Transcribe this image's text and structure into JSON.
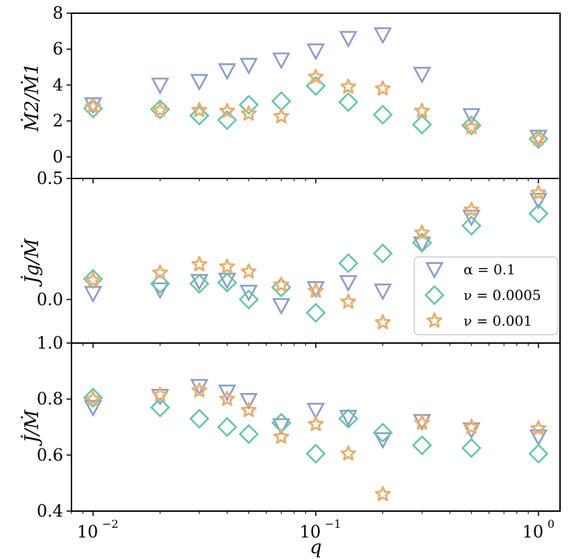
{
  "colors": {
    "alpha": "#8c9cc8",
    "nu_low": "#66c5a6",
    "nu_high": "#e6b072"
  },
  "chart_data": [
    {
      "type": "scatter",
      "panel": "top",
      "ylabel": "Ṁ2/Ṁ1",
      "xscale": "log",
      "xlim": [
        0.008,
        1.25
      ],
      "ylim": [
        -1.2,
        8
      ],
      "yticks": [
        "0",
        "2",
        "4",
        "6",
        "8"
      ],
      "ytick_values": [
        0,
        2,
        4,
        6,
        8
      ],
      "series": [
        {
          "name": "α = 0.1",
          "marker": "triangle-down",
          "color_key": "alpha",
          "x": [
            0.01,
            0.02,
            0.03,
            0.04,
            0.05,
            0.07,
            0.1,
            0.14,
            0.2,
            0.3,
            0.5,
            1.0
          ],
          "y": [
            2.9,
            4.0,
            4.2,
            4.8,
            5.1,
            5.4,
            5.9,
            6.6,
            6.8,
            4.6,
            2.3,
            1.1
          ]
        },
        {
          "name": "ν = 0.0005",
          "marker": "diamond",
          "color_key": "nu_low",
          "x": [
            0.01,
            0.02,
            0.03,
            0.04,
            0.05,
            0.07,
            0.1,
            0.14,
            0.2,
            0.3,
            0.5,
            1.0
          ],
          "y": [
            2.7,
            2.65,
            2.3,
            2.05,
            2.9,
            3.1,
            3.95,
            3.05,
            2.35,
            1.8,
            1.75,
            1.0
          ]
        },
        {
          "name": "ν = 0.001",
          "marker": "star",
          "color_key": "nu_high",
          "x": [
            0.01,
            0.02,
            0.03,
            0.04,
            0.05,
            0.07,
            0.1,
            0.14,
            0.2,
            0.3,
            0.5,
            1.0
          ],
          "y": [
            2.8,
            2.6,
            2.6,
            2.55,
            2.4,
            2.25,
            4.45,
            3.9,
            3.8,
            2.55,
            1.65,
            1.0
          ]
        }
      ]
    },
    {
      "type": "scatter",
      "panel": "middle",
      "ylabel": "J̇g/Ṁ",
      "xscale": "log",
      "xlim": [
        0.008,
        1.25
      ],
      "ylim": [
        -0.18,
        0.5
      ],
      "yticks": [
        "0.0",
        "0.5"
      ],
      "ytick_values": [
        0.0,
        0.5
      ],
      "series": [
        {
          "name": "α = 0.1",
          "marker": "triangle-down",
          "color_key": "alpha",
          "x": [
            0.01,
            0.02,
            0.03,
            0.04,
            0.05,
            0.07,
            0.1,
            0.14,
            0.2,
            0.3,
            0.5,
            1.0
          ],
          "y": [
            0.025,
            0.04,
            0.075,
            0.08,
            0.03,
            -0.025,
            0.045,
            0.07,
            0.035,
            0.23,
            0.34,
            0.41
          ]
        },
        {
          "name": "ν = 0.0005",
          "marker": "diamond",
          "color_key": "nu_low",
          "x": [
            0.01,
            0.02,
            0.03,
            0.04,
            0.05,
            0.07,
            0.1,
            0.14,
            0.2,
            0.3,
            0.5,
            1.0
          ],
          "y": [
            0.085,
            0.065,
            0.065,
            0.07,
            0.0,
            0.05,
            -0.055,
            0.15,
            0.19,
            0.235,
            0.305,
            0.355
          ]
        },
        {
          "name": "ν = 0.001",
          "marker": "star",
          "color_key": "nu_high",
          "x": [
            0.01,
            0.02,
            0.03,
            0.04,
            0.05,
            0.07,
            0.1,
            0.14,
            0.2,
            0.3,
            0.5,
            1.0
          ],
          "y": [
            0.08,
            0.11,
            0.145,
            0.135,
            0.115,
            0.06,
            0.035,
            -0.01,
            -0.095,
            0.275,
            0.37,
            0.44
          ]
        }
      ]
    },
    {
      "type": "scatter",
      "panel": "bottom",
      "ylabel": "J̇/Ṁ",
      "xlabel": "q",
      "xscale": "log",
      "xlim": [
        0.008,
        1.25
      ],
      "ylim": [
        0.4,
        1.0
      ],
      "yticks": [
        "0.4",
        "0.6",
        "0.8",
        "1.0"
      ],
      "ytick_values": [
        0.4,
        0.6,
        0.8,
        1.0
      ],
      "xticks_base": [
        "10",
        "10",
        "10"
      ],
      "xticks_exp": [
        "−2",
        "−1",
        "0"
      ],
      "xtick_values": [
        0.01,
        0.1,
        1.0
      ],
      "series": [
        {
          "name": "α = 0.1",
          "marker": "triangle-down",
          "color_key": "alpha",
          "x": [
            0.01,
            0.02,
            0.03,
            0.04,
            0.05,
            0.07,
            0.1,
            0.14,
            0.2,
            0.3,
            0.5,
            1.0
          ],
          "y": [
            0.77,
            0.81,
            0.845,
            0.825,
            0.795,
            0.705,
            0.76,
            0.735,
            0.655,
            0.72,
            0.69,
            0.665
          ]
        },
        {
          "name": "ν = 0.0005",
          "marker": "diamond",
          "color_key": "nu_low",
          "x": [
            0.01,
            0.02,
            0.03,
            0.04,
            0.05,
            0.07,
            0.1,
            0.14,
            0.2,
            0.3,
            0.5,
            1.0
          ],
          "y": [
            0.805,
            0.77,
            0.73,
            0.7,
            0.675,
            0.715,
            0.605,
            0.73,
            0.68,
            0.635,
            0.625,
            0.605
          ]
        },
        {
          "name": "ν = 0.001",
          "marker": "star",
          "color_key": "nu_high",
          "x": [
            0.01,
            0.02,
            0.03,
            0.04,
            0.05,
            0.07,
            0.1,
            0.14,
            0.2,
            0.3,
            0.5,
            1.0
          ],
          "y": [
            0.8,
            0.815,
            0.83,
            0.8,
            0.76,
            0.665,
            0.71,
            0.605,
            0.46,
            0.715,
            0.7,
            0.695
          ]
        }
      ]
    }
  ],
  "legend": {
    "placement": "right-middle-panel",
    "entries": [
      "α = 0.1",
      "ν = 0.0005",
      "ν = 0.001"
    ]
  }
}
